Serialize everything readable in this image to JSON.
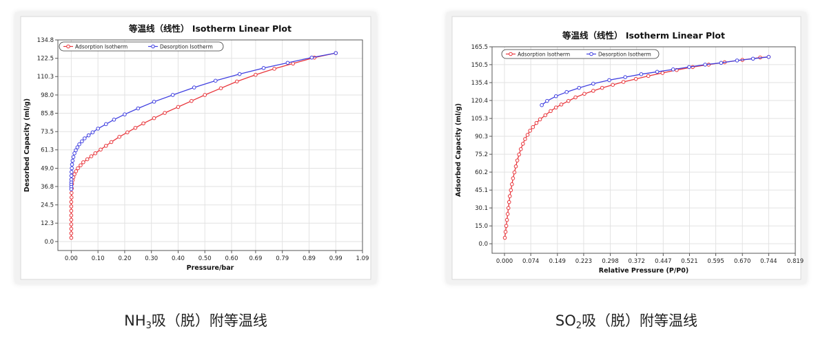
{
  "captions": {
    "left": {
      "pre": "NH",
      "sub": "3",
      "post": "吸（脱）附等温线"
    },
    "right": {
      "pre": "SO",
      "sub": "2",
      "post": "吸（脱）附等温线"
    }
  },
  "chart_data": [
    {
      "type": "line",
      "title": "等温线（线性） Isotherm Linear Plot",
      "xlabel": "Pressure/bar",
      "ylabel": "Desorbed Capacity (ml/g)",
      "xlim": [
        -0.05,
        1.09
      ],
      "ylim": [
        -6,
        134.8
      ],
      "xticks": [
        "0.00",
        "0.10",
        "0.20",
        "0.30",
        "0.40",
        "0.50",
        "0.60",
        "0.69",
        "0.79",
        "0.89",
        "0.99",
        "1.09"
      ],
      "xtick_values": [
        0.0,
        0.1,
        0.2,
        0.3,
        0.4,
        0.5,
        0.6,
        0.69,
        0.79,
        0.89,
        0.99,
        1.09
      ],
      "yticks": [
        "0.0",
        "12.3",
        "24.5",
        "36.8",
        "49.0",
        "61.3",
        "73.5",
        "85.8",
        "98.0",
        "110.3",
        "122.5",
        "134.8"
      ],
      "ytick_values": [
        0.0,
        12.3,
        24.5,
        36.8,
        49.0,
        61.3,
        73.5,
        85.8,
        98.0,
        110.3,
        122.5,
        134.8
      ],
      "grid": true,
      "legend": "top-left",
      "series": [
        {
          "name": "Adsorption Isotherm",
          "color": "#e8343a",
          "x": [
            0.0,
            0.0,
            0.0,
            0.0,
            0.0,
            0.0,
            0.0,
            0.0,
            0.0,
            0.001,
            0.001,
            0.002,
            0.003,
            0.005,
            0.008,
            0.012,
            0.018,
            0.025,
            0.035,
            0.045,
            0.06,
            0.075,
            0.09,
            0.11,
            0.13,
            0.15,
            0.18,
            0.21,
            0.24,
            0.27,
            0.31,
            0.35,
            0.4,
            0.45,
            0.5,
            0.56,
            0.62,
            0.69,
            0.76,
            0.83,
            0.91,
            0.99
          ],
          "y": [
            2.5,
            5.5,
            8.5,
            11.5,
            14.5,
            17.5,
            20.5,
            23.5,
            26.5,
            29.5,
            32.5,
            35.5,
            38.5,
            41.0,
            43.0,
            45.0,
            47.0,
            49.0,
            51.0,
            53.0,
            55.0,
            57.0,
            59.0,
            61.5,
            64.0,
            66.5,
            70.0,
            73.0,
            76.0,
            79.0,
            82.5,
            86.0,
            90.0,
            94.0,
            98.0,
            102.5,
            107.0,
            111.5,
            115.5,
            119.0,
            123.0,
            126.0
          ]
        },
        {
          "name": "Desorption Isotherm",
          "color": "#3f3fe0",
          "x": [
            0.99,
            0.9,
            0.81,
            0.72,
            0.63,
            0.54,
            0.46,
            0.38,
            0.31,
            0.25,
            0.2,
            0.16,
            0.13,
            0.1,
            0.08,
            0.065,
            0.05,
            0.04,
            0.03,
            0.023,
            0.017,
            0.012,
            0.008,
            0.005,
            0.003,
            0.002,
            0.001,
            0.0005,
            0.0002,
            0.0,
            0.0,
            0.0,
            0.0
          ],
          "y": [
            126.0,
            123.0,
            119.5,
            116.0,
            112.0,
            107.5,
            103.0,
            98.0,
            93.5,
            89.0,
            85.0,
            81.5,
            78.5,
            75.5,
            73.0,
            71.0,
            69.0,
            67.0,
            65.0,
            63.0,
            61.0,
            59.0,
            56.5,
            54.0,
            51.5,
            49.0,
            46.5,
            44.0,
            41.5,
            39.5,
            38.0,
            36.5,
            35.0
          ]
        }
      ]
    },
    {
      "type": "line",
      "title": "等温线（线性） Isotherm Linear Plot",
      "xlabel": "Relative Pressure (P/P0)",
      "ylabel": "Adsorbed Capacity (ml/g)",
      "xlim": [
        -0.035,
        0.819
      ],
      "ylim": [
        -8,
        165.5
      ],
      "xticks": [
        "0.000",
        "0.074",
        "0.149",
        "0.223",
        "0.298",
        "0.372",
        "0.447",
        "0.521",
        "0.595",
        "0.670",
        "0.744",
        "0.819"
      ],
      "xtick_values": [
        0.0,
        0.074,
        0.149,
        0.223,
        0.298,
        0.372,
        0.447,
        0.521,
        0.595,
        0.67,
        0.744,
        0.819
      ],
      "yticks": [
        "0.0",
        "15.0",
        "30.1",
        "45.1",
        "60.2",
        "75.2",
        "90.3",
        "105.3",
        "120.4",
        "135.4",
        "150.5",
        "165.5"
      ],
      "ytick_values": [
        0.0,
        15.0,
        30.1,
        45.1,
        60.2,
        75.2,
        90.3,
        105.3,
        120.4,
        135.4,
        150.5,
        165.5
      ],
      "grid": true,
      "legend": "top-left",
      "series": [
        {
          "name": "Adsorption Isotherm",
          "color": "#e8343a",
          "x": [
            0.001,
            0.003,
            0.005,
            0.007,
            0.009,
            0.011,
            0.013,
            0.015,
            0.018,
            0.021,
            0.024,
            0.028,
            0.032,
            0.036,
            0.041,
            0.046,
            0.052,
            0.058,
            0.065,
            0.072,
            0.08,
            0.09,
            0.1,
            0.115,
            0.13,
            0.145,
            0.16,
            0.18,
            0.2,
            0.225,
            0.25,
            0.275,
            0.305,
            0.335,
            0.37,
            0.405,
            0.445,
            0.485,
            0.53,
            0.575,
            0.62,
            0.67,
            0.72,
            0.744
          ],
          "y": [
            5.0,
            10.0,
            15.0,
            20.0,
            25.0,
            30.0,
            35.0,
            40.0,
            45.0,
            50.0,
            55.0,
            60.0,
            65.0,
            70.0,
            75.0,
            79.5,
            84.0,
            88.0,
            91.5,
            95.0,
            98.0,
            101.5,
            104.5,
            108.0,
            111.5,
            114.5,
            117.0,
            120.0,
            123.0,
            126.0,
            128.5,
            131.0,
            133.5,
            136.0,
            138.5,
            141.0,
            143.5,
            146.0,
            148.5,
            150.5,
            152.5,
            154.5,
            156.5,
            157.0
          ]
        },
        {
          "name": "Desorption Isotherm",
          "color": "#3f3fe0",
          "x": [
            0.744,
            0.7,
            0.655,
            0.61,
            0.565,
            0.52,
            0.475,
            0.43,
            0.385,
            0.34,
            0.295,
            0.25,
            0.21,
            0.175,
            0.145,
            0.12,
            0.105
          ],
          "y": [
            157.0,
            155.5,
            154.0,
            152.0,
            150.5,
            148.5,
            146.5,
            144.5,
            142.5,
            140.0,
            137.5,
            134.5,
            131.0,
            127.5,
            124.0,
            120.0,
            116.5
          ]
        }
      ]
    }
  ]
}
